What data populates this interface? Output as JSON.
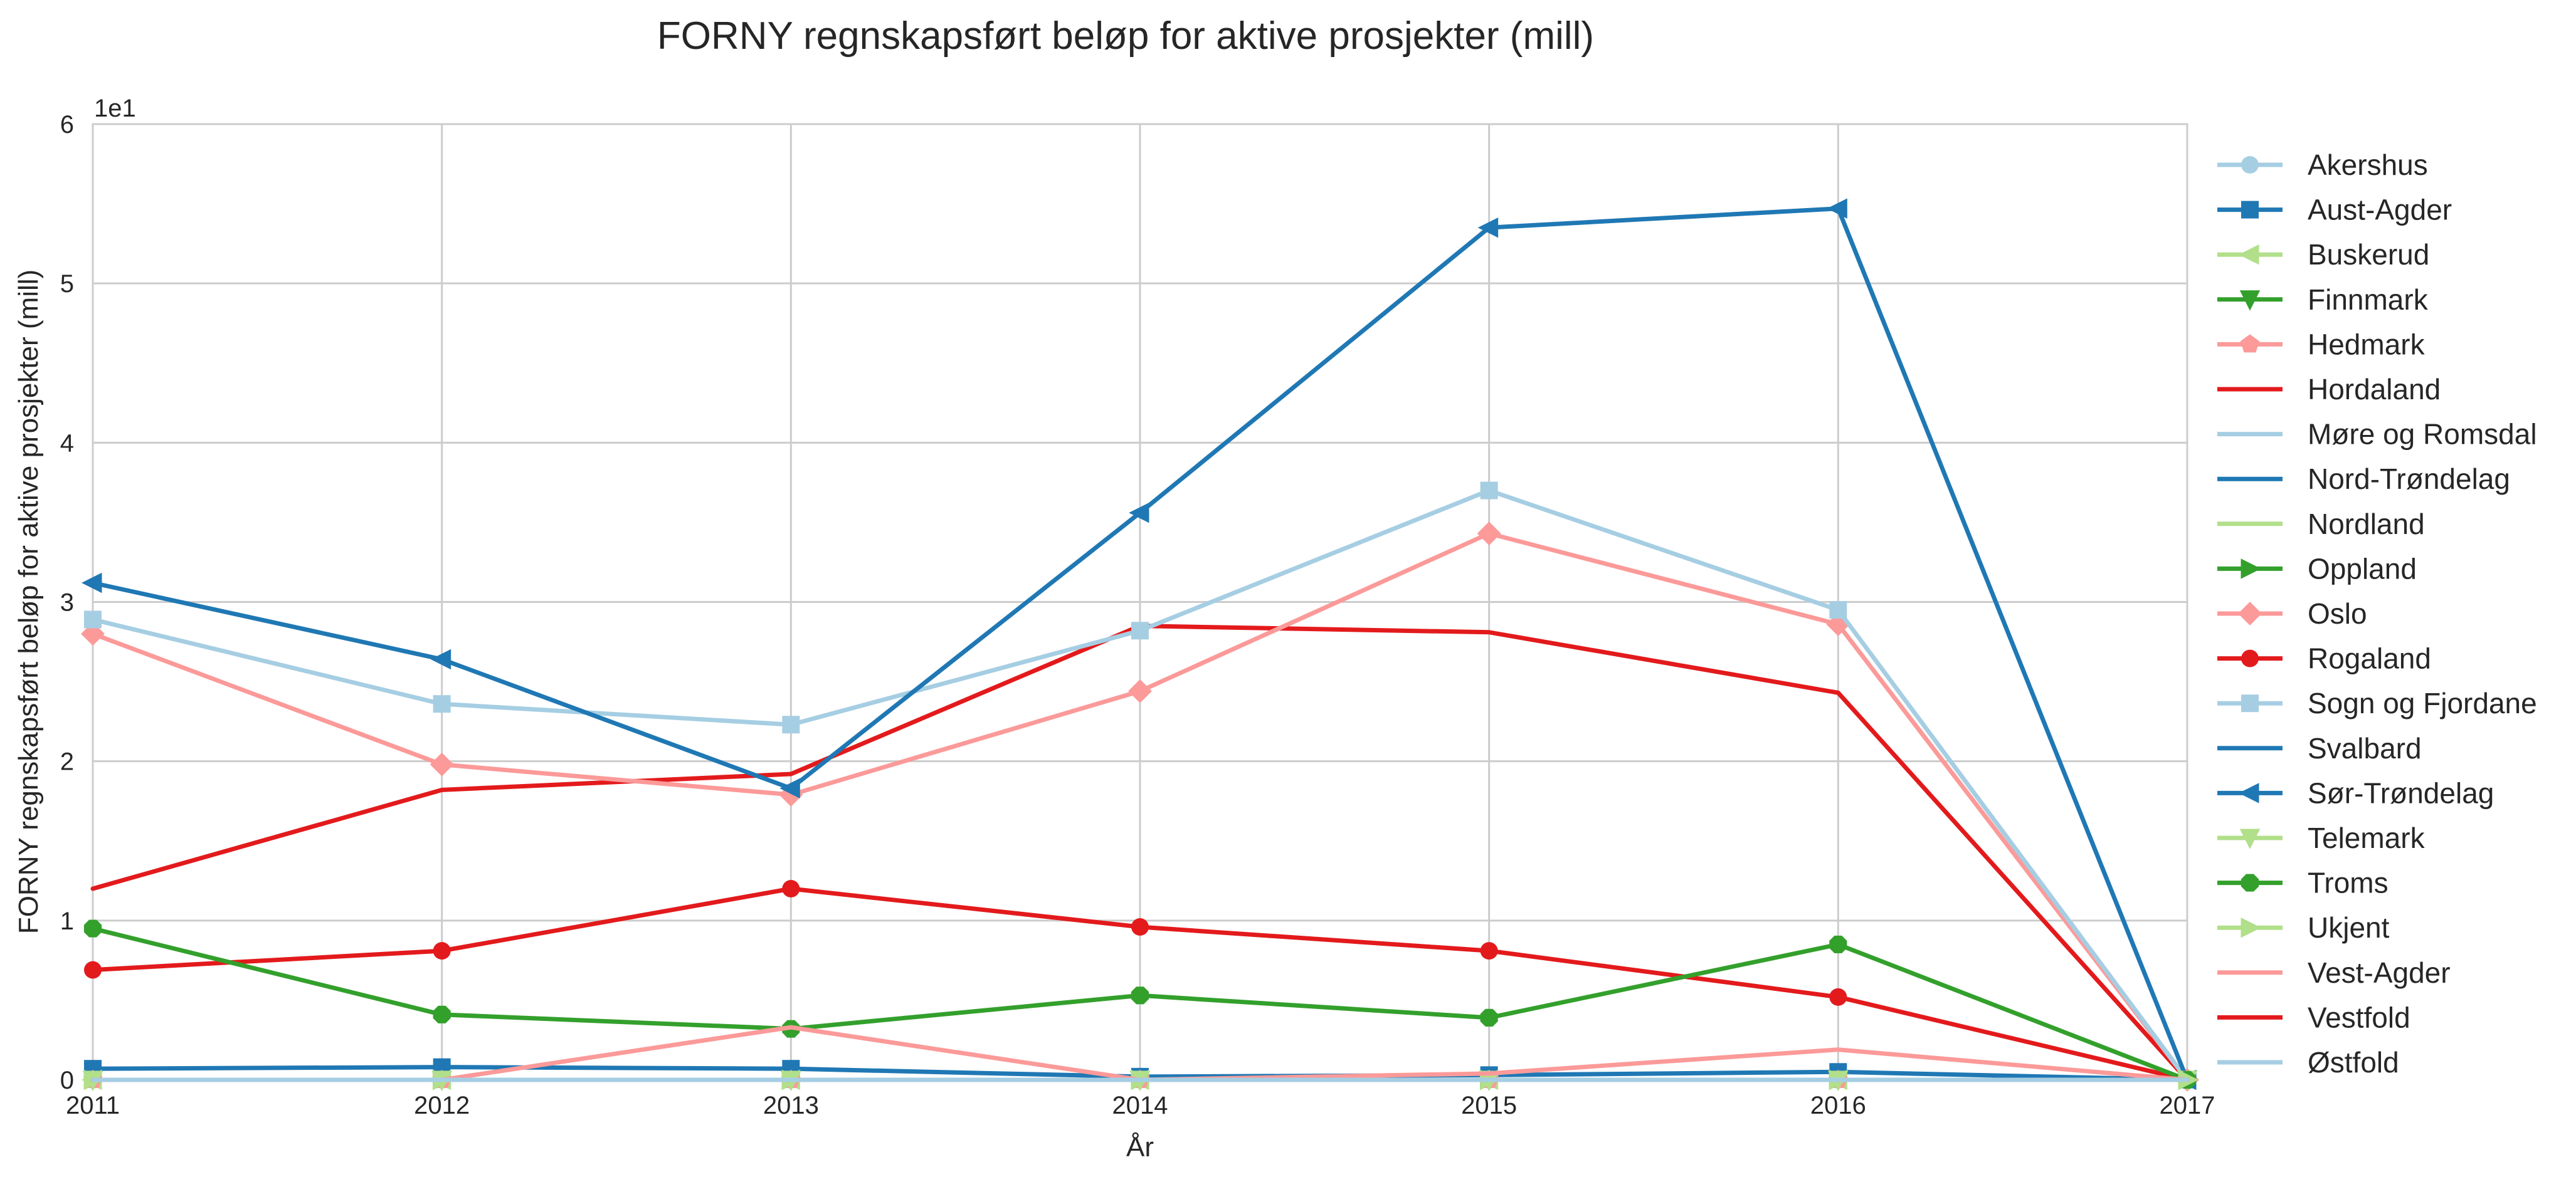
{
  "chart_data": {
    "type": "line",
    "title": "FORNY regnskapsført beløp for aktive prosjekter (mill)",
    "xlabel": "År",
    "ylabel": "FORNY regnskapsført beløp for aktive prosjekter (mill)",
    "y_offset_text": "1e1",
    "x": [
      2011,
      2012,
      2013,
      2014,
      2015,
      2016,
      2017
    ],
    "x_tick_labels": [
      "2011",
      "2012",
      "2013",
      "2014",
      "2015",
      "2016",
      "2017"
    ],
    "y_ticks": [
      0,
      10,
      20,
      30,
      40,
      50,
      60
    ],
    "y_tick_labels": [
      "0",
      "1",
      "2",
      "3",
      "4",
      "5",
      "6"
    ],
    "xlim": [
      2011,
      2017
    ],
    "ylim": [
      0,
      60
    ],
    "grid": true,
    "legend_position": "right (outside plot)",
    "series": [
      {
        "name": "Akershus",
        "color": "#a6cee3",
        "marker": "circle",
        "values": [
          0,
          0,
          0,
          0,
          0,
          0,
          0
        ]
      },
      {
        "name": "Aust-Agder",
        "color": "#1f78b4",
        "marker": "square",
        "values": [
          0.7,
          0.8,
          0.7,
          0.2,
          0.3,
          0.5,
          0
        ]
      },
      {
        "name": "Buskerud",
        "color": "#b2df8a",
        "marker": "triangle-left",
        "values": [
          0,
          0,
          0,
          0,
          0,
          0,
          0
        ]
      },
      {
        "name": "Finnmark",
        "color": "#33a02c",
        "marker": "triangle-down",
        "values": [
          0,
          0,
          0,
          0,
          0,
          0,
          0
        ]
      },
      {
        "name": "Hedmark",
        "color": "#fb9a99",
        "marker": "pentagon",
        "values": [
          0,
          0,
          0,
          0,
          0,
          0,
          0
        ]
      },
      {
        "name": "Hordaland",
        "color": "#e31a1c",
        "marker": "none",
        "values": [
          12.0,
          18.2,
          19.2,
          28.5,
          28.1,
          24.3,
          0
        ]
      },
      {
        "name": "Møre og Romsdal",
        "color": "#a6cee3",
        "marker": "none",
        "values": [
          0,
          0,
          0,
          0,
          0,
          0,
          0
        ]
      },
      {
        "name": "Nord-Trøndelag",
        "color": "#1f78b4",
        "marker": "none",
        "values": [
          0,
          0,
          0,
          0,
          0,
          0,
          0
        ]
      },
      {
        "name": "Nordland",
        "color": "#b2df8a",
        "marker": "none",
        "values": [
          0,
          0,
          0,
          0,
          0,
          0,
          0
        ]
      },
      {
        "name": "Oppland",
        "color": "#33a02c",
        "marker": "triangle-right",
        "values": [
          0,
          0,
          0,
          0,
          0,
          0,
          0
        ]
      },
      {
        "name": "Oslo",
        "color": "#fb9a99",
        "marker": "diamond",
        "values": [
          28.0,
          19.8,
          17.9,
          24.4,
          34.3,
          28.6,
          0
        ]
      },
      {
        "name": "Rogaland",
        "color": "#e31a1c",
        "marker": "circle",
        "values": [
          6.9,
          8.1,
          12.0,
          9.6,
          8.1,
          5.2,
          0
        ]
      },
      {
        "name": "Sogn og Fjordane",
        "color": "#a6cee3",
        "marker": "square",
        "values": [
          28.9,
          23.6,
          22.3,
          28.2,
          37.0,
          29.5,
          0
        ]
      },
      {
        "name": "Svalbard",
        "color": "#1f78b4",
        "marker": "none",
        "values": [
          0,
          0,
          0,
          0,
          0,
          0,
          0
        ]
      },
      {
        "name": "Sør-Trøndelag",
        "color": "#1f78b4",
        "marker": "triangle-left",
        "values": [
          31.2,
          26.4,
          18.3,
          35.6,
          53.5,
          54.7,
          0
        ]
      },
      {
        "name": "Telemark",
        "color": "#b2df8a",
        "marker": "triangle-down",
        "values": [
          0,
          0,
          0,
          0,
          0,
          0,
          0
        ]
      },
      {
        "name": "Troms",
        "color": "#33a02c",
        "marker": "octagon",
        "values": [
          9.5,
          4.1,
          3.2,
          5.3,
          3.9,
          8.5,
          0
        ]
      },
      {
        "name": "Ukjent",
        "color": "#b2df8a",
        "marker": "triangle-right",
        "values": [
          0,
          0,
          0,
          0,
          0,
          0,
          0
        ]
      },
      {
        "name": "Vest-Agder",
        "color": "#fb9a99",
        "marker": "none",
        "values": [
          0,
          0,
          3.3,
          0,
          0.4,
          1.9,
          0
        ]
      },
      {
        "name": "Vestfold",
        "color": "#e31a1c",
        "marker": "none",
        "values": [
          0,
          0,
          0,
          0,
          0,
          0,
          0
        ]
      },
      {
        "name": "Østfold",
        "color": "#a6cee3",
        "marker": "none",
        "values": [
          0,
          0,
          0,
          0,
          0,
          0,
          0
        ]
      }
    ]
  }
}
